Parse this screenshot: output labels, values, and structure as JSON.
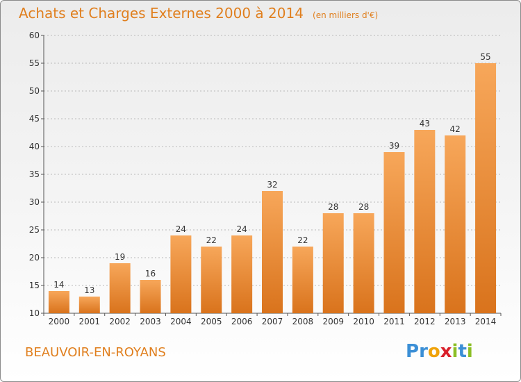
{
  "header": {
    "title": "Achats et Charges Externes 2000 à 2014",
    "unit": "(en milliers d'€)"
  },
  "footer": {
    "place": "BEAUVOIR-EN-ROYANS",
    "logo": {
      "letters": [
        "P",
        "r",
        "o",
        "x",
        "i",
        "t",
        "i"
      ],
      "colors": [
        "#3b8fd6",
        "#3b8fd6",
        "#f0a30a",
        "#d9202b",
        "#8cbf26",
        "#3b8fd6",
        "#8cbf26"
      ]
    }
  },
  "colors": {
    "accent": "#e07f1e",
    "bar_top": "#f7a75a",
    "bar_bottom": "#d9731c"
  },
  "chart_data": {
    "type": "bar",
    "title": "Achats et Charges Externes 2000 à 2014",
    "ylabel": "",
    "xlabel": "",
    "categories": [
      "2000",
      "2001",
      "2002",
      "2003",
      "2004",
      "2005",
      "2006",
      "2007",
      "2008",
      "2009",
      "2010",
      "2011",
      "2012",
      "2013",
      "2014"
    ],
    "values": [
      14,
      13,
      19,
      16,
      24,
      22,
      24,
      32,
      22,
      28,
      28,
      39,
      43,
      42,
      55
    ],
    "ylim": [
      10,
      60
    ],
    "yticks": [
      10,
      15,
      20,
      25,
      30,
      35,
      40,
      45,
      50,
      55,
      60
    ],
    "grid": true,
    "data_labels": true
  }
}
